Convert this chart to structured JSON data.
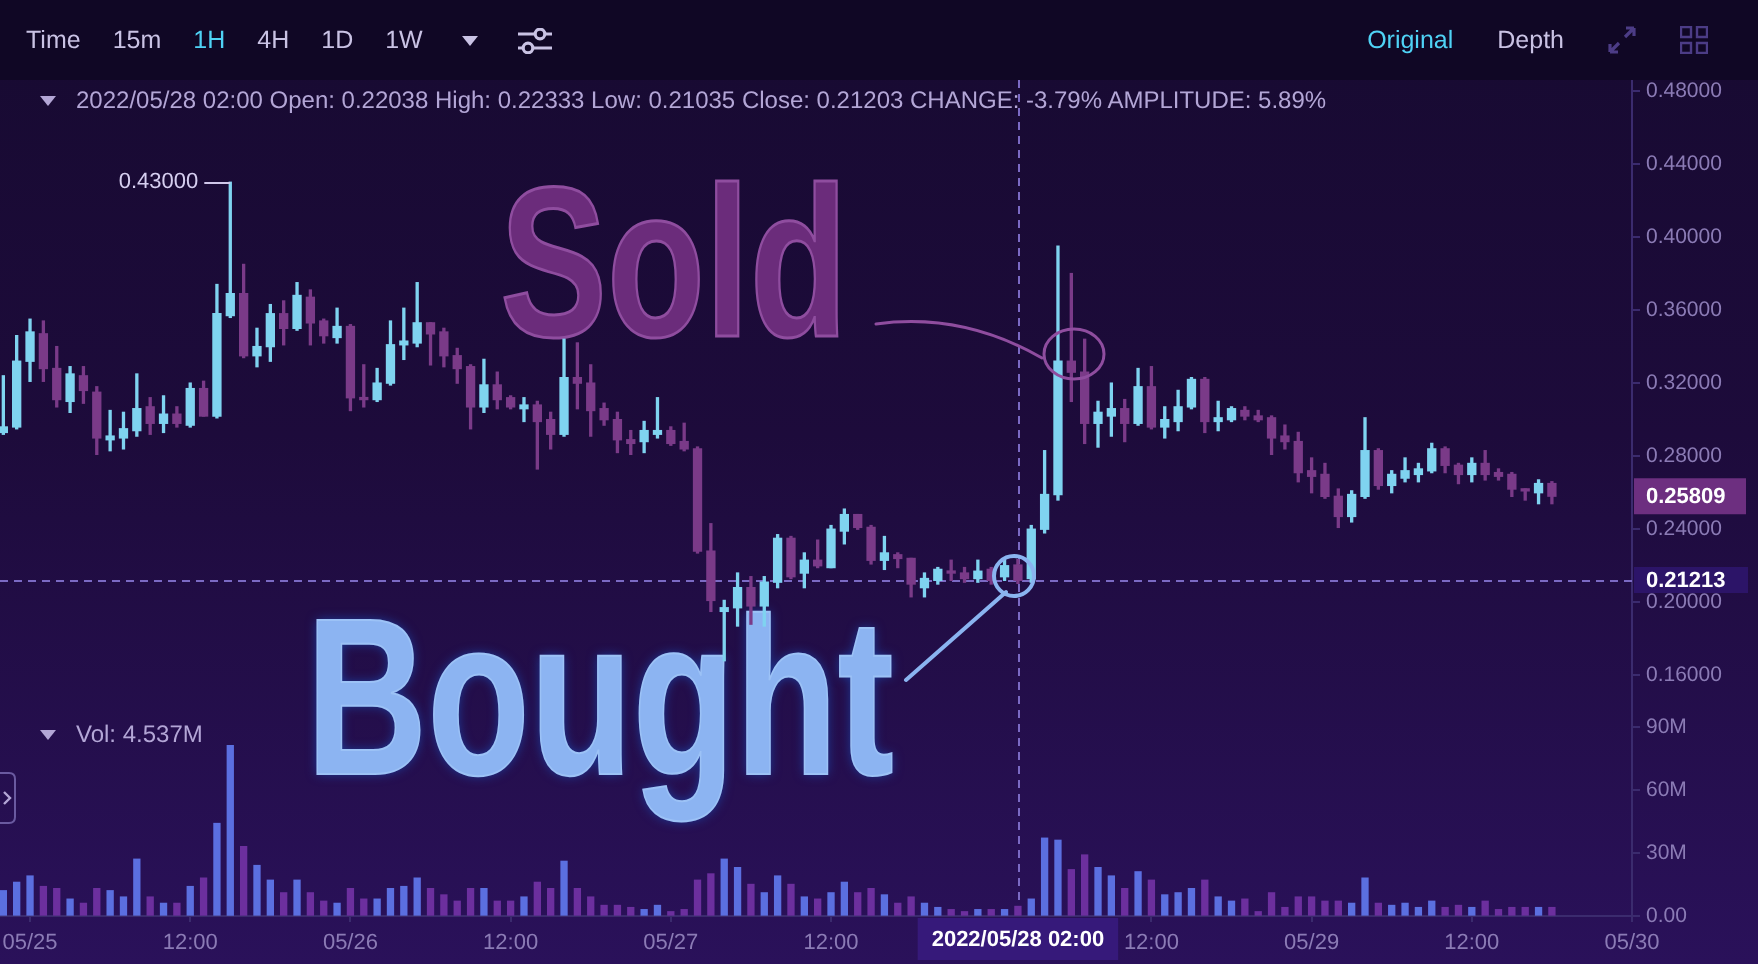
{
  "chart_data": [
    {
      "type": "other",
      "annotations": [
        "Time",
        "15m",
        "1H",
        "4H",
        "1D",
        "1W",
        "Original",
        "Depth"
      ]
    },
    {
      "type": "candlestick",
      "subtitle": "2022/05/28 02:00 Open: 0.22038 High: 0.22333 Low: 0.21035 Close: 0.21203 CHANGE: -3.79% AMPLITUDE: 5.89%",
      "x": [
        "2022-05-24T22:00",
        "2022-05-24T23:00",
        "2022-05-25T00:00",
        "2022-05-25T01:00",
        "2022-05-25T02:00",
        "2022-05-25T03:00",
        "2022-05-25T04:00",
        "2022-05-25T05:00",
        "2022-05-25T06:00",
        "2022-05-25T07:00",
        "2022-05-25T08:00",
        "2022-05-25T09:00",
        "2022-05-25T10:00",
        "2022-05-25T11:00",
        "2022-05-25T12:00",
        "2022-05-25T13:00",
        "2022-05-25T14:00",
        "2022-05-25T15:00",
        "2022-05-25T16:00",
        "2022-05-25T17:00",
        "2022-05-25T18:00",
        "2022-05-25T19:00",
        "2022-05-25T20:00",
        "2022-05-25T21:00",
        "2022-05-25T22:00",
        "2022-05-25T23:00",
        "2022-05-26T00:00",
        "2022-05-26T01:00",
        "2022-05-26T02:00",
        "2022-05-26T03:00",
        "2022-05-26T04:00",
        "2022-05-26T05:00",
        "2022-05-26T06:00",
        "2022-05-26T07:00",
        "2022-05-26T08:00",
        "2022-05-26T09:00",
        "2022-05-26T10:00",
        "2022-05-26T11:00",
        "2022-05-26T12:00",
        "2022-05-26T13:00",
        "2022-05-26T14:00",
        "2022-05-26T15:00",
        "2022-05-26T16:00",
        "2022-05-26T17:00",
        "2022-05-26T18:00",
        "2022-05-26T19:00",
        "2022-05-26T20:00",
        "2022-05-26T21:00",
        "2022-05-26T22:00",
        "2022-05-26T23:00",
        "2022-05-27T00:00",
        "2022-05-27T01:00",
        "2022-05-27T02:00",
        "2022-05-27T03:00",
        "2022-05-27T04:00",
        "2022-05-27T05:00",
        "2022-05-27T06:00",
        "2022-05-27T07:00",
        "2022-05-27T08:00",
        "2022-05-27T09:00",
        "2022-05-27T10:00",
        "2022-05-27T11:00",
        "2022-05-27T12:00",
        "2022-05-27T13:00",
        "2022-05-27T14:00",
        "2022-05-27T15:00",
        "2022-05-27T16:00",
        "2022-05-27T17:00",
        "2022-05-27T18:00",
        "2022-05-27T19:00",
        "2022-05-27T20:00",
        "2022-05-27T21:00",
        "2022-05-27T22:00",
        "2022-05-27T23:00",
        "2022-05-28T00:00",
        "2022-05-28T01:00",
        "2022-05-28T02:00",
        "2022-05-28T03:00",
        "2022-05-28T04:00",
        "2022-05-28T05:00",
        "2022-05-28T06:00",
        "2022-05-28T07:00",
        "2022-05-28T08:00",
        "2022-05-28T09:00",
        "2022-05-28T10:00",
        "2022-05-28T11:00",
        "2022-05-28T12:00",
        "2022-05-28T13:00",
        "2022-05-28T14:00",
        "2022-05-28T15:00",
        "2022-05-28T16:00",
        "2022-05-28T17:00",
        "2022-05-28T18:00",
        "2022-05-28T19:00",
        "2022-05-28T20:00",
        "2022-05-28T21:00",
        "2022-05-28T22:00",
        "2022-05-28T23:00",
        "2022-05-29T00:00",
        "2022-05-29T01:00",
        "2022-05-29T02:00",
        "2022-05-29T03:00",
        "2022-05-29T04:00",
        "2022-05-29T05:00",
        "2022-05-29T06:00",
        "2022-05-29T07:00",
        "2022-05-29T08:00",
        "2022-05-29T09:00",
        "2022-05-29T10:00",
        "2022-05-29T11:00",
        "2022-05-29T12:00",
        "2022-05-29T13:00",
        "2022-05-29T14:00",
        "2022-05-29T15:00",
        "2022-05-29T16:00",
        "2022-05-29T17:00",
        "2022-05-29T18:00"
      ],
      "ohlc": [
        [
          0.293,
          0.324,
          0.292,
          0.296
        ],
        [
          0.296,
          0.346,
          0.295,
          0.332
        ],
        [
          0.332,
          0.355,
          0.321,
          0.348
        ],
        [
          0.347,
          0.354,
          0.321,
          0.328
        ],
        [
          0.328,
          0.34,
          0.307,
          0.311
        ],
        [
          0.31,
          0.329,
          0.304,
          0.325
        ],
        [
          0.324,
          0.329,
          0.309,
          0.316
        ],
        [
          0.315,
          0.318,
          0.281,
          0.29
        ],
        [
          0.289,
          0.305,
          0.283,
          0.291
        ],
        [
          0.29,
          0.304,
          0.284,
          0.295
        ],
        [
          0.294,
          0.325,
          0.291,
          0.306
        ],
        [
          0.307,
          0.312,
          0.292,
          0.298
        ],
        [
          0.298,
          0.313,
          0.293,
          0.303
        ],
        [
          0.303,
          0.307,
          0.296,
          0.298
        ],
        [
          0.297,
          0.32,
          0.296,
          0.317
        ],
        [
          0.317,
          0.321,
          0.302,
          0.302
        ],
        [
          0.302,
          0.374,
          0.301,
          0.358
        ],
        [
          0.357,
          0.43,
          0.356,
          0.369
        ],
        [
          0.369,
          0.385,
          0.334,
          0.335
        ],
        [
          0.335,
          0.35,
          0.329,
          0.34
        ],
        [
          0.34,
          0.363,
          0.332,
          0.358
        ],
        [
          0.358,
          0.365,
          0.341,
          0.35
        ],
        [
          0.35,
          0.375,
          0.349,
          0.368
        ],
        [
          0.367,
          0.371,
          0.341,
          0.353
        ],
        [
          0.354,
          0.355,
          0.342,
          0.346
        ],
        [
          0.345,
          0.361,
          0.342,
          0.351
        ],
        [
          0.351,
          0.352,
          0.305,
          0.312
        ],
        [
          0.312,
          0.33,
          0.307,
          0.311
        ],
        [
          0.311,
          0.328,
          0.31,
          0.32
        ],
        [
          0.32,
          0.354,
          0.319,
          0.341
        ],
        [
          0.341,
          0.361,
          0.333,
          0.343
        ],
        [
          0.342,
          0.375,
          0.34,
          0.353
        ],
        [
          0.353,
          0.353,
          0.33,
          0.347
        ],
        [
          0.348,
          0.35,
          0.329,
          0.335
        ],
        [
          0.335,
          0.339,
          0.32,
          0.328
        ],
        [
          0.329,
          0.33,
          0.295,
          0.307
        ],
        [
          0.307,
          0.333,
          0.304,
          0.319
        ],
        [
          0.319,
          0.326,
          0.306,
          0.311
        ],
        [
          0.312,
          0.313,
          0.306,
          0.307
        ],
        [
          0.306,
          0.312,
          0.299,
          0.308
        ],
        [
          0.308,
          0.31,
          0.273,
          0.299
        ],
        [
          0.3,
          0.304,
          0.284,
          0.292
        ],
        [
          0.292,
          0.344,
          0.291,
          0.323
        ],
        [
          0.323,
          0.342,
          0.306,
          0.32
        ],
        [
          0.32,
          0.33,
          0.291,
          0.305
        ],
        [
          0.306,
          0.309,
          0.297,
          0.3
        ],
        [
          0.3,
          0.304,
          0.282,
          0.289
        ],
        [
          0.289,
          0.294,
          0.281,
          0.287
        ],
        [
          0.288,
          0.299,
          0.282,
          0.294
        ],
        [
          0.292,
          0.312,
          0.29,
          0.294
        ],
        [
          0.294,
          0.296,
          0.286,
          0.287
        ],
        [
          0.288,
          0.298,
          0.283,
          0.284
        ],
        [
          0.284,
          0.285,
          0.227,
          0.228
        ],
        [
          0.228,
          0.243,
          0.195,
          0.201
        ],
        [
          0.195,
          0.201,
          0.168,
          0.197
        ],
        [
          0.197,
          0.216,
          0.187,
          0.208
        ],
        [
          0.208,
          0.214,
          0.188,
          0.198
        ],
        [
          0.198,
          0.214,
          0.187,
          0.211
        ],
        [
          0.211,
          0.237,
          0.208,
          0.235
        ],
        [
          0.235,
          0.236,
          0.213,
          0.214
        ],
        [
          0.216,
          0.227,
          0.208,
          0.223
        ],
        [
          0.223,
          0.234,
          0.219,
          0.22
        ],
        [
          0.219,
          0.242,
          0.219,
          0.24
        ],
        [
          0.239,
          0.251,
          0.232,
          0.248
        ],
        [
          0.248,
          0.248,
          0.24,
          0.241
        ],
        [
          0.241,
          0.242,
          0.221,
          0.223
        ],
        [
          0.223,
          0.236,
          0.218,
          0.227
        ],
        [
          0.226,
          0.227,
          0.219,
          0.224
        ],
        [
          0.224,
          0.224,
          0.203,
          0.21
        ],
        [
          0.208,
          0.216,
          0.203,
          0.213
        ],
        [
          0.212,
          0.219,
          0.21,
          0.218
        ],
        [
          0.217,
          0.223,
          0.212,
          0.216
        ],
        [
          0.216,
          0.219,
          0.211,
          0.213
        ],
        [
          0.213,
          0.223,
          0.211,
          0.217
        ],
        [
          0.218,
          0.219,
          0.21,
          0.212
        ],
        [
          0.214,
          0.223,
          0.212,
          0.22
        ],
        [
          0.22038,
          0.22333,
          0.21035,
          0.21203
        ],
        [
          0.213,
          0.242,
          0.211,
          0.24
        ],
        [
          0.24,
          0.283,
          0.238,
          0.259
        ],
        [
          0.259,
          0.395,
          0.256,
          0.332
        ],
        [
          0.332,
          0.38,
          0.31,
          0.326
        ],
        [
          0.326,
          0.344,
          0.287,
          0.298
        ],
        [
          0.298,
          0.31,
          0.285,
          0.304
        ],
        [
          0.302,
          0.32,
          0.291,
          0.306
        ],
        [
          0.306,
          0.311,
          0.288,
          0.298
        ],
        [
          0.298,
          0.328,
          0.297,
          0.318
        ],
        [
          0.318,
          0.329,
          0.295,
          0.296
        ],
        [
          0.296,
          0.307,
          0.29,
          0.3
        ],
        [
          0.299,
          0.316,
          0.294,
          0.307
        ],
        [
          0.307,
          0.323,
          0.306,
          0.322
        ],
        [
          0.322,
          0.323,
          0.293,
          0.299
        ],
        [
          0.299,
          0.31,
          0.294,
          0.301
        ],
        [
          0.3,
          0.307,
          0.299,
          0.306
        ],
        [
          0.305,
          0.307,
          0.3,
          0.302
        ],
        [
          0.302,
          0.305,
          0.299,
          0.3
        ],
        [
          0.301,
          0.302,
          0.281,
          0.29
        ],
        [
          0.291,
          0.297,
          0.284,
          0.288
        ],
        [
          0.288,
          0.293,
          0.266,
          0.271
        ],
        [
          0.272,
          0.279,
          0.26,
          0.269
        ],
        [
          0.27,
          0.276,
          0.257,
          0.258
        ],
        [
          0.258,
          0.262,
          0.241,
          0.247
        ],
        [
          0.247,
          0.261,
          0.244,
          0.259
        ],
        [
          0.258,
          0.301,
          0.257,
          0.283
        ],
        [
          0.283,
          0.284,
          0.262,
          0.264
        ],
        [
          0.264,
          0.272,
          0.26,
          0.27
        ],
        [
          0.268,
          0.279,
          0.266,
          0.272
        ],
        [
          0.27,
          0.276,
          0.266,
          0.273
        ],
        [
          0.272,
          0.287,
          0.271,
          0.284
        ],
        [
          0.284,
          0.285,
          0.271,
          0.275
        ],
        [
          0.275,
          0.276,
          0.265,
          0.27
        ],
        [
          0.27,
          0.279,
          0.266,
          0.276
        ],
        [
          0.276,
          0.283,
          0.267,
          0.27
        ],
        [
          0.271,
          0.273,
          0.267,
          0.269
        ],
        [
          0.27,
          0.271,
          0.258,
          0.262
        ],
        [
          0.262,
          0.262,
          0.256,
          0.261
        ],
        [
          0.26,
          0.267,
          0.254,
          0.265
        ],
        [
          0.265,
          0.266,
          0.254,
          0.25809
        ]
      ],
      "colors": [
        "#7fd3f0",
        "#7fd3f0",
        "#7fd3f0",
        "#7a3a88",
        "#7a3a88",
        "#7fd3f0",
        "#7a3a88",
        "#7a3a88",
        "#7fd3f0",
        "#7fd3f0",
        "#7fd3f0",
        "#7a3a88",
        "#7fd3f0",
        "#7a3a88",
        "#7fd3f0",
        "#7a3a88",
        "#7fd3f0",
        "#7fd3f0",
        "#7a3a88",
        "#7fd3f0",
        "#7fd3f0",
        "#7a3a88",
        "#7fd3f0",
        "#7a3a88",
        "#7a3a88",
        "#7fd3f0",
        "#7a3a88",
        "#7a3a88",
        "#7fd3f0",
        "#7fd3f0",
        "#7fd3f0",
        "#7fd3f0",
        "#7a3a88",
        "#7a3a88",
        "#7a3a88",
        "#7a3a88",
        "#7fd3f0",
        "#7a3a88",
        "#7a3a88",
        "#7fd3f0",
        "#7a3a88",
        "#7a3a88",
        "#7fd3f0",
        "#7a3a88",
        "#7a3a88",
        "#7a3a88",
        "#7a3a88",
        "#7a3a88",
        "#7fd3f0",
        "#7fd3f0",
        "#7a3a88",
        "#7a3a88",
        "#7a3a88",
        "#7a3a88",
        "#7fd3f0",
        "#7fd3f0",
        "#7a3a88",
        "#7fd3f0",
        "#7fd3f0",
        "#7a3a88",
        "#7fd3f0",
        "#7a3a88",
        "#7fd3f0",
        "#7fd3f0",
        "#7a3a88",
        "#7a3a88",
        "#7fd3f0",
        "#7a3a88",
        "#7a3a88",
        "#7fd3f0",
        "#7fd3f0",
        "#7a3a88",
        "#7a3a88",
        "#7fd3f0",
        "#7a3a88",
        "#7fd3f0",
        "#7a3a88",
        "#7fd3f0",
        "#7fd3f0",
        "#7fd3f0",
        "#7a3a88",
        "#7a3a88",
        "#7fd3f0",
        "#7fd3f0",
        "#7a3a88",
        "#7fd3f0",
        "#7a3a88",
        "#7fd3f0",
        "#7fd3f0",
        "#7fd3f0",
        "#7a3a88",
        "#7fd3f0",
        "#7fd3f0",
        "#7a3a88",
        "#7a3a88",
        "#7a3a88",
        "#7a3a88",
        "#7a3a88",
        "#7a3a88",
        "#7a3a88",
        "#7a3a88",
        "#7fd3f0",
        "#7fd3f0",
        "#7a3a88",
        "#7fd3f0",
        "#7fd3f0",
        "#7fd3f0",
        "#7fd3f0",
        "#7a3a88",
        "#7a3a88",
        "#7fd3f0",
        "#7a3a88",
        "#7a3a88",
        "#7a3a88",
        "#7a3a88",
        "#7fd3f0",
        "#7a3a88"
      ],
      "xlim": [
        "2022-05-24T21:45",
        "2022-05-30T00:00"
      ],
      "ylim": [
        0.141,
        0.486
      ],
      "yticks": [
        {
          "value": 0.16,
          "label": "0.16000"
        },
        {
          "value": 0.2,
          "label": "0.20000"
        },
        {
          "value": 0.24,
          "label": "0.24000"
        },
        {
          "value": 0.28,
          "label": "0.28000"
        },
        {
          "value": 0.32,
          "label": "0.32000"
        },
        {
          "value": 0.36,
          "label": "0.36000"
        },
        {
          "value": 0.4,
          "label": "0.40000"
        },
        {
          "value": 0.44,
          "label": "0.44000"
        },
        {
          "value": 0.48,
          "label": "0.48000"
        }
      ],
      "tick_labels": "y",
      "grid": false,
      "legend": false,
      "ref_lines": [
        {
          "axis": "x",
          "value": "2022-05-28T02:00",
          "color": "#7b6ac4",
          "line_style": "dashed"
        },
        {
          "axis": "y",
          "value": 0.21213,
          "label": "0.21213",
          "color": "#7b6ac4",
          "line_style": "dashed"
        }
      ],
      "annotations": [
        {
          "text": "0.43000",
          "x": "2022-05-25T15:00",
          "y": 0.43
        },
        "0.25809",
        {
          "text": "Sold",
          "x": "2022-05-28T06:00",
          "y": 0.335
        },
        {
          "text": "Bought",
          "x": "2022-05-28T02:00",
          "y": 0.214
        }
      ]
    },
    {
      "type": "bar",
      "title": "Vol: 4.537M",
      "x": [
        "2022-05-24T22:00",
        "2022-05-24T23:00",
        "2022-05-25T00:00",
        "2022-05-25T01:00",
        "2022-05-25T02:00",
        "2022-05-25T03:00",
        "2022-05-25T04:00",
        "2022-05-25T05:00",
        "2022-05-25T06:00",
        "2022-05-25T07:00",
        "2022-05-25T08:00",
        "2022-05-25T09:00",
        "2022-05-25T10:00",
        "2022-05-25T11:00",
        "2022-05-25T12:00",
        "2022-05-25T13:00",
        "2022-05-25T14:00",
        "2022-05-25T15:00",
        "2022-05-25T16:00",
        "2022-05-25T17:00",
        "2022-05-25T18:00",
        "2022-05-25T19:00",
        "2022-05-25T20:00",
        "2022-05-25T21:00",
        "2022-05-25T22:00",
        "2022-05-25T23:00",
        "2022-05-26T00:00",
        "2022-05-26T01:00",
        "2022-05-26T02:00",
        "2022-05-26T03:00",
        "2022-05-26T04:00",
        "2022-05-26T05:00",
        "2022-05-26T06:00",
        "2022-05-26T07:00",
        "2022-05-26T08:00",
        "2022-05-26T09:00",
        "2022-05-26T10:00",
        "2022-05-26T11:00",
        "2022-05-26T12:00",
        "2022-05-26T13:00",
        "2022-05-26T14:00",
        "2022-05-26T15:00",
        "2022-05-26T16:00",
        "2022-05-26T17:00",
        "2022-05-26T18:00",
        "2022-05-26T19:00",
        "2022-05-26T20:00",
        "2022-05-26T21:00",
        "2022-05-26T22:00",
        "2022-05-26T23:00",
        "2022-05-27T00:00",
        "2022-05-27T01:00",
        "2022-05-27T02:00",
        "2022-05-27T03:00",
        "2022-05-27T04:00",
        "2022-05-27T05:00",
        "2022-05-27T06:00",
        "2022-05-27T07:00",
        "2022-05-27T08:00",
        "2022-05-27T09:00",
        "2022-05-27T10:00",
        "2022-05-27T11:00",
        "2022-05-27T12:00",
        "2022-05-27T13:00",
        "2022-05-27T14:00",
        "2022-05-27T15:00",
        "2022-05-27T16:00",
        "2022-05-27T17:00",
        "2022-05-27T18:00",
        "2022-05-27T19:00",
        "2022-05-27T20:00",
        "2022-05-27T21:00",
        "2022-05-27T22:00",
        "2022-05-27T23:00",
        "2022-05-28T00:00",
        "2022-05-28T01:00",
        "2022-05-28T02:00",
        "2022-05-28T03:00",
        "2022-05-28T04:00",
        "2022-05-28T05:00",
        "2022-05-28T06:00",
        "2022-05-28T07:00",
        "2022-05-28T08:00",
        "2022-05-28T09:00",
        "2022-05-28T10:00",
        "2022-05-28T11:00",
        "2022-05-28T12:00",
        "2022-05-28T13:00",
        "2022-05-28T14:00",
        "2022-05-28T15:00",
        "2022-05-28T16:00",
        "2022-05-28T17:00",
        "2022-05-28T18:00",
        "2022-05-28T19:00",
        "2022-05-28T20:00",
        "2022-05-28T21:00",
        "2022-05-28T22:00",
        "2022-05-28T23:00",
        "2022-05-29T00:00",
        "2022-05-29T01:00",
        "2022-05-29T02:00",
        "2022-05-29T03:00",
        "2022-05-29T04:00",
        "2022-05-29T05:00",
        "2022-05-29T06:00",
        "2022-05-29T07:00",
        "2022-05-29T08:00",
        "2022-05-29T09:00",
        "2022-05-29T10:00",
        "2022-05-29T11:00",
        "2022-05-29T12:00",
        "2022-05-29T13:00",
        "2022-05-29T14:00",
        "2022-05-29T15:00",
        "2022-05-29T16:00",
        "2022-05-29T17:00",
        "2022-05-29T18:00"
      ],
      "values": [
        12,
        16,
        19,
        14,
        13,
        8,
        6,
        13,
        12,
        9,
        27,
        9,
        6,
        6,
        14,
        18,
        44,
        81,
        33,
        24,
        17,
        11,
        17,
        11,
        7,
        6,
        13,
        8,
        8,
        13,
        14,
        18,
        13,
        10,
        7,
        13,
        13,
        7,
        7,
        9,
        16,
        13,
        26,
        13,
        9,
        5,
        5,
        4,
        3,
        5,
        2,
        3,
        17,
        20,
        27,
        23,
        15,
        11,
        19,
        15,
        9,
        8,
        11,
        16,
        11,
        13,
        10,
        6,
        9,
        6,
        4,
        3,
        2,
        3,
        3,
        3,
        4.537,
        8,
        37,
        36,
        22,
        29,
        23,
        19,
        13,
        21,
        17,
        10,
        11,
        13,
        17,
        9,
        7,
        8,
        2,
        11,
        4,
        9,
        9,
        7,
        7,
        6,
        18,
        6,
        5,
        6,
        4,
        7,
        4,
        5,
        4,
        7,
        3,
        4,
        4,
        4,
        4
      ],
      "colors": [
        "#5b6fe0",
        "#5b6fe0",
        "#5b6fe0",
        "#6c2f9e",
        "#6c2f9e",
        "#5b6fe0",
        "#6c2f9e",
        "#6c2f9e",
        "#5b6fe0",
        "#5b6fe0",
        "#5b6fe0",
        "#6c2f9e",
        "#5b6fe0",
        "#6c2f9e",
        "#5b6fe0",
        "#6c2f9e",
        "#5b6fe0",
        "#5b6fe0",
        "#6c2f9e",
        "#5b6fe0",
        "#5b6fe0",
        "#6c2f9e",
        "#5b6fe0",
        "#6c2f9e",
        "#6c2f9e",
        "#5b6fe0",
        "#6c2f9e",
        "#6c2f9e",
        "#5b6fe0",
        "#5b6fe0",
        "#5b6fe0",
        "#5b6fe0",
        "#6c2f9e",
        "#6c2f9e",
        "#6c2f9e",
        "#6c2f9e",
        "#5b6fe0",
        "#6c2f9e",
        "#6c2f9e",
        "#5b6fe0",
        "#6c2f9e",
        "#6c2f9e",
        "#5b6fe0",
        "#6c2f9e",
        "#6c2f9e",
        "#6c2f9e",
        "#6c2f9e",
        "#6c2f9e",
        "#5b6fe0",
        "#5b6fe0",
        "#6c2f9e",
        "#6c2f9e",
        "#6c2f9e",
        "#6c2f9e",
        "#5b6fe0",
        "#5b6fe0",
        "#6c2f9e",
        "#5b6fe0",
        "#5b6fe0",
        "#6c2f9e",
        "#5b6fe0",
        "#6c2f9e",
        "#5b6fe0",
        "#5b6fe0",
        "#6c2f9e",
        "#6c2f9e",
        "#5b6fe0",
        "#6c2f9e",
        "#6c2f9e",
        "#5b6fe0",
        "#5b6fe0",
        "#6c2f9e",
        "#6c2f9e",
        "#5b6fe0",
        "#6c2f9e",
        "#5b6fe0",
        "#6c2f9e",
        "#5b6fe0",
        "#5b6fe0",
        "#5b6fe0",
        "#6c2f9e",
        "#6c2f9e",
        "#5b6fe0",
        "#5b6fe0",
        "#6c2f9e",
        "#5b6fe0",
        "#6c2f9e",
        "#5b6fe0",
        "#5b6fe0",
        "#5b6fe0",
        "#6c2f9e",
        "#5b6fe0",
        "#5b6fe0",
        "#6c2f9e",
        "#6c2f9e",
        "#6c2f9e",
        "#6c2f9e",
        "#6c2f9e",
        "#6c2f9e",
        "#6c2f9e",
        "#6c2f9e",
        "#5b6fe0",
        "#5b6fe0",
        "#6c2f9e",
        "#5b6fe0",
        "#5b6fe0",
        "#5b6fe0",
        "#5b6fe0",
        "#6c2f9e",
        "#6c2f9e",
        "#5b6fe0",
        "#6c2f9e",
        "#6c2f9e",
        "#6c2f9e",
        "#6c2f9e",
        "#5b6fe0",
        "#6c2f9e"
      ],
      "xlim": [
        "2022-05-24T21:45",
        "2022-05-30T00:00"
      ],
      "xticks": [
        {
          "value": "2022-05-25",
          "label": "05/25"
        },
        {
          "value": "2022-05-25T12:00",
          "label": "12:00"
        },
        {
          "value": "2022-05-26",
          "label": "05/26"
        },
        {
          "value": "2022-05-26T12:00",
          "label": "12:00"
        },
        {
          "value": "2022-05-27",
          "label": "05/27"
        },
        {
          "value": "2022-05-27T12:00",
          "label": "12:00"
        },
        {
          "value": "2022-05-28T12:00",
          "label": "12:00"
        },
        {
          "value": "2022-05-29",
          "label": "05/29"
        },
        {
          "value": "2022-05-29T12:00",
          "label": "12:00"
        },
        {
          "value": "2022-05-30",
          "label": "05/30"
        }
      ],
      "ylim": [
        0,
        98
      ],
      "yticks": [
        {
          "value": 0,
          "label": "0.00"
        },
        {
          "value": 30,
          "label": "30M"
        },
        {
          "value": 60,
          "label": "60M"
        },
        {
          "value": 90,
          "label": "90M"
        }
      ],
      "grid": false,
      "legend": false,
      "ref_lines": [
        {
          "axis": "x",
          "value": "2022-05-28T02:00",
          "label": "2022/05/28 02:00",
          "color": "#7b6ac4",
          "line_style": "dashed"
        }
      ]
    }
  ]
}
